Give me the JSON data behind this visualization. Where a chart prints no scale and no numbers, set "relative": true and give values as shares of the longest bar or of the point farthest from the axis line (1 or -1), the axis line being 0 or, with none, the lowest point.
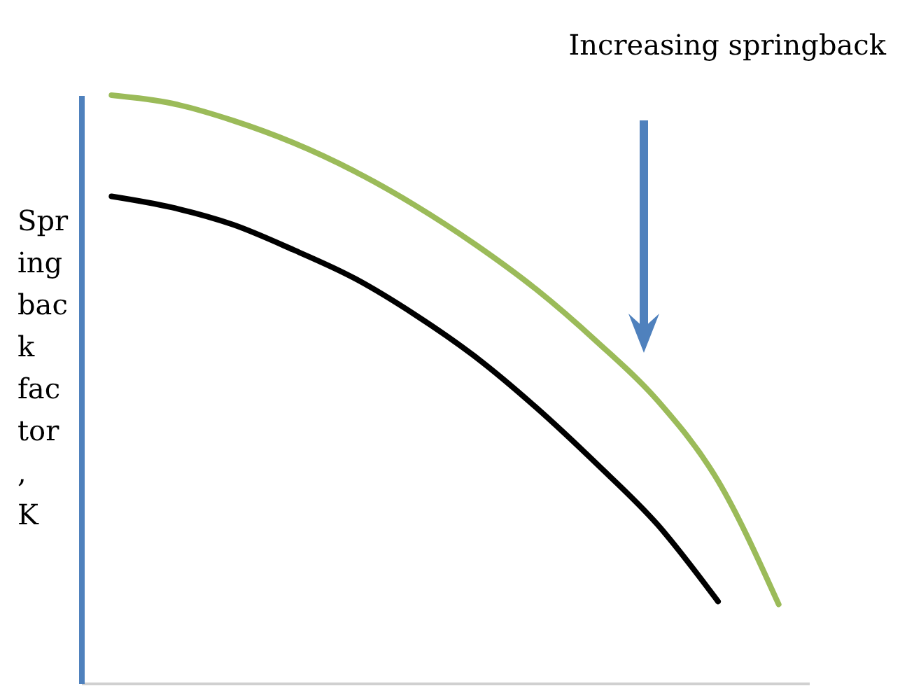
{
  "chart_data": {
    "type": "line",
    "relative": true,
    "ylabel": "Springback factor, K",
    "annotations": [
      "Increasing springback"
    ],
    "categories": [
      null,
      null,
      null,
      null,
      null,
      null,
      null,
      null,
      null,
      null,
      null,
      null
    ],
    "series": [
      {
        "color": "#9bbb59",
        "values": [
          1,
          0.986,
          0.957,
          0.919,
          0.871,
          0.813,
          0.746,
          0.67,
          0.581,
          0.481,
          0.344,
          0.134
        ]
      },
      {
        "color": "#000000",
        "values": [
          0.828,
          0.809,
          0.78,
          0.737,
          0.689,
          0.627,
          0.555,
          0.469,
          0.373,
          0.27,
          0.139,
          null
        ]
      }
    ],
    "legend": false,
    "grid": false,
    "marker": "none",
    "line_style": "solid"
  }
}
